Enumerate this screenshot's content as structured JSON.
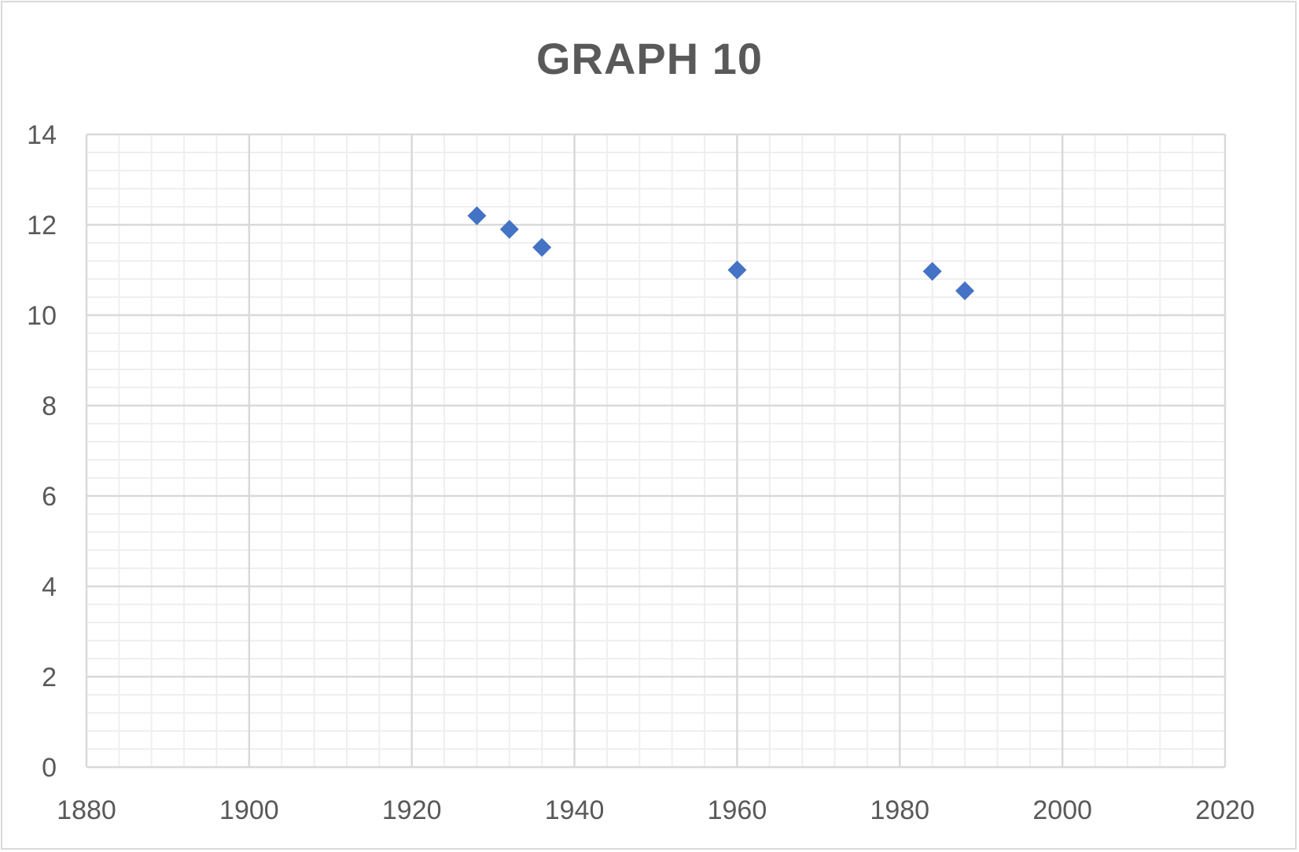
{
  "chart_data": {
    "type": "scatter",
    "title": "GRAPH 10",
    "xlabel": "",
    "ylabel": "",
    "xlim": [
      1880,
      2020
    ],
    "ylim": [
      0,
      14
    ],
    "x_ticks": [
      1880,
      1900,
      1920,
      1940,
      1960,
      1980,
      2000,
      2020
    ],
    "y_ticks": [
      0,
      2,
      4,
      6,
      8,
      10,
      12,
      14
    ],
    "x_minor_step": 4,
    "y_minor_step": 0.4,
    "grid": true,
    "legend": "none",
    "marker": "diamond",
    "colors": {
      "marker": "#4472c4",
      "major_grid": "#d9d9d9",
      "minor_grid": "#efefef",
      "text": "#595959"
    },
    "series": [
      {
        "points": [
          {
            "x": 1928,
            "y": 12.2
          },
          {
            "x": 1932,
            "y": 11.9
          },
          {
            "x": 1936,
            "y": 11.5
          },
          {
            "x": 1960,
            "y": 11.0
          },
          {
            "x": 1984,
            "y": 10.97
          },
          {
            "x": 1988,
            "y": 10.54
          }
        ]
      }
    ]
  }
}
